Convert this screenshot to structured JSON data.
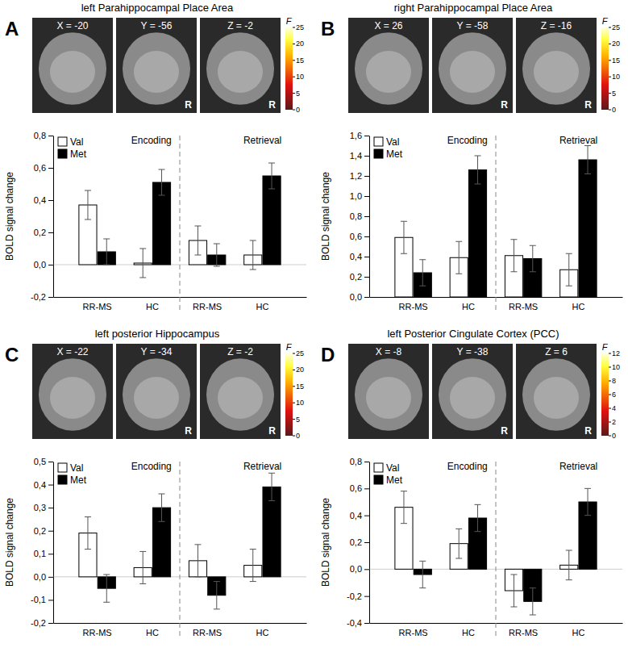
{
  "chart_data": [
    {
      "type": "bar",
      "panel": "A",
      "title": "left Parahippocampal Place Area",
      "slice_labels": [
        "X = -20",
        "Y = -56",
        "Z = -2"
      ],
      "side_label": "R",
      "colorbar": {
        "label": "F",
        "range": [
          0,
          25
        ],
        "ticks": [
          0,
          5,
          10,
          15,
          20,
          25
        ]
      },
      "ylabel": "BOLD signal change",
      "categories": [
        "RR-MS",
        "HC",
        "RR-MS",
        "HC"
      ],
      "groups": [
        "Encoding",
        "Retrieval"
      ],
      "series": [
        {
          "name": "Val",
          "color": "#ffffff",
          "values": [
            0.37,
            0.01,
            0.15,
            0.06
          ],
          "errors": [
            0.09,
            0.09,
            0.09,
            0.09
          ]
        },
        {
          "name": "Met",
          "color": "#000000",
          "values": [
            0.08,
            0.51,
            0.06,
            0.55
          ],
          "errors": [
            0.08,
            0.08,
            0.07,
            0.08
          ]
        }
      ],
      "ylim": [
        -0.2,
        0.8
      ],
      "yticks": [
        {
          "value": -0.2,
          "label": "-0,2"
        },
        {
          "value": 0,
          "label": "0,0"
        },
        {
          "value": 0.2,
          "label": "0,2"
        },
        {
          "value": 0.4,
          "label": "0,4"
        },
        {
          "value": 0.6,
          "label": "0,6"
        },
        {
          "value": 0.8,
          "label": "0,8"
        }
      ],
      "legend": "upper left",
      "grid": false
    },
    {
      "type": "bar",
      "panel": "B",
      "title": "right Parahippocampal Place Area",
      "slice_labels": [
        "X = 26",
        "Y = -58",
        "Z = -16"
      ],
      "side_label": "R",
      "colorbar": {
        "label": "F",
        "range": [
          0,
          25
        ],
        "ticks": [
          0,
          5,
          10,
          15,
          20,
          25
        ]
      },
      "ylabel": "BOLD signal change",
      "categories": [
        "RR-MS",
        "HC",
        "RR-MS",
        "HC"
      ],
      "groups": [
        "Encoding",
        "Retrieval"
      ],
      "series": [
        {
          "name": "Val",
          "color": "#ffffff",
          "values": [
            0.59,
            0.39,
            0.41,
            0.27
          ],
          "errors": [
            0.16,
            0.16,
            0.16,
            0.16
          ]
        },
        {
          "name": "Met",
          "color": "#000000",
          "values": [
            0.24,
            1.26,
            0.38,
            1.36
          ],
          "errors": [
            0.13,
            0.14,
            0.13,
            0.14
          ]
        }
      ],
      "ylim": [
        0,
        1.6
      ],
      "yticks": [
        {
          "value": 0,
          "label": "0,0"
        },
        {
          "value": 0.2,
          "label": "0,2"
        },
        {
          "value": 0.4,
          "label": "0,4"
        },
        {
          "value": 0.6,
          "label": "0,6"
        },
        {
          "value": 0.8,
          "label": "0,8"
        },
        {
          "value": 1,
          "label": "1,0"
        },
        {
          "value": 1.2,
          "label": "1,2"
        },
        {
          "value": 1.4,
          "label": "1,4"
        },
        {
          "value": 1.6,
          "label": "1,6"
        }
      ],
      "legend": "upper left",
      "grid": false
    },
    {
      "type": "bar",
      "panel": "C",
      "title": "left posterior Hippocampus",
      "slice_labels": [
        "X = -22",
        "Y = -34",
        "Z = -2"
      ],
      "side_label": "R",
      "colorbar": {
        "label": "F",
        "range": [
          0,
          25
        ],
        "ticks": [
          0,
          5,
          10,
          15,
          20,
          25
        ]
      },
      "ylabel": "BOLD signal change",
      "categories": [
        "RR-MS",
        "HC",
        "RR-MS",
        "HC"
      ],
      "groups": [
        "Encoding",
        "Retrieval"
      ],
      "series": [
        {
          "name": "Val",
          "color": "#ffffff",
          "values": [
            0.19,
            0.04,
            0.07,
            0.05
          ],
          "errors": [
            0.07,
            0.07,
            0.07,
            0.07
          ]
        },
        {
          "name": "Met",
          "color": "#000000",
          "values": [
            -0.05,
            0.3,
            -0.08,
            0.39
          ],
          "errors": [
            0.06,
            0.06,
            0.06,
            0.06
          ]
        }
      ],
      "ylim": [
        -0.2,
        0.5
      ],
      "yticks": [
        {
          "value": -0.2,
          "label": "-0,2"
        },
        {
          "value": -0.1,
          "label": "-0,1"
        },
        {
          "value": 0,
          "label": "0,0"
        },
        {
          "value": 0.1,
          "label": "0,1"
        },
        {
          "value": 0.2,
          "label": "0,2"
        },
        {
          "value": 0.3,
          "label": "0,3"
        },
        {
          "value": 0.4,
          "label": "0,4"
        },
        {
          "value": 0.5,
          "label": "0,5"
        }
      ],
      "legend": "upper left",
      "grid": false
    },
    {
      "type": "bar",
      "panel": "D",
      "title": "left Posterior Cingulate Cortex (PCC)",
      "slice_labels": [
        "X = -8",
        "Y = -38",
        "Z = 6"
      ],
      "side_label": "R",
      "colorbar": {
        "label": "F",
        "range": [
          0,
          12
        ],
        "ticks": [
          0,
          2,
          4,
          6,
          8,
          10,
          12
        ]
      },
      "ylabel": "BOLD signal change",
      "categories": [
        "RR-MS",
        "HC",
        "RR-MS",
        "HC"
      ],
      "groups": [
        "Encoding",
        "Retrieval"
      ],
      "series": [
        {
          "name": "Val",
          "color": "#ffffff",
          "values": [
            0.46,
            0.19,
            -0.16,
            0.03
          ],
          "errors": [
            0.12,
            0.11,
            0.12,
            0.11
          ]
        },
        {
          "name": "Met",
          "color": "#000000",
          "values": [
            -0.04,
            0.38,
            -0.24,
            0.5
          ],
          "errors": [
            0.1,
            0.1,
            0.1,
            0.1
          ]
        }
      ],
      "ylim": [
        -0.4,
        0.8
      ],
      "yticks": [
        {
          "value": -0.4,
          "label": "-0,4"
        },
        {
          "value": -0.2,
          "label": "-0,2"
        },
        {
          "value": 0,
          "label": "0,0"
        },
        {
          "value": 0.2,
          "label": "0,2"
        },
        {
          "value": 0.4,
          "label": "0,4"
        },
        {
          "value": 0.6,
          "label": "0,6"
        },
        {
          "value": 0.8,
          "label": "0,8"
        }
      ],
      "legend": "upper left",
      "grid": false
    }
  ]
}
